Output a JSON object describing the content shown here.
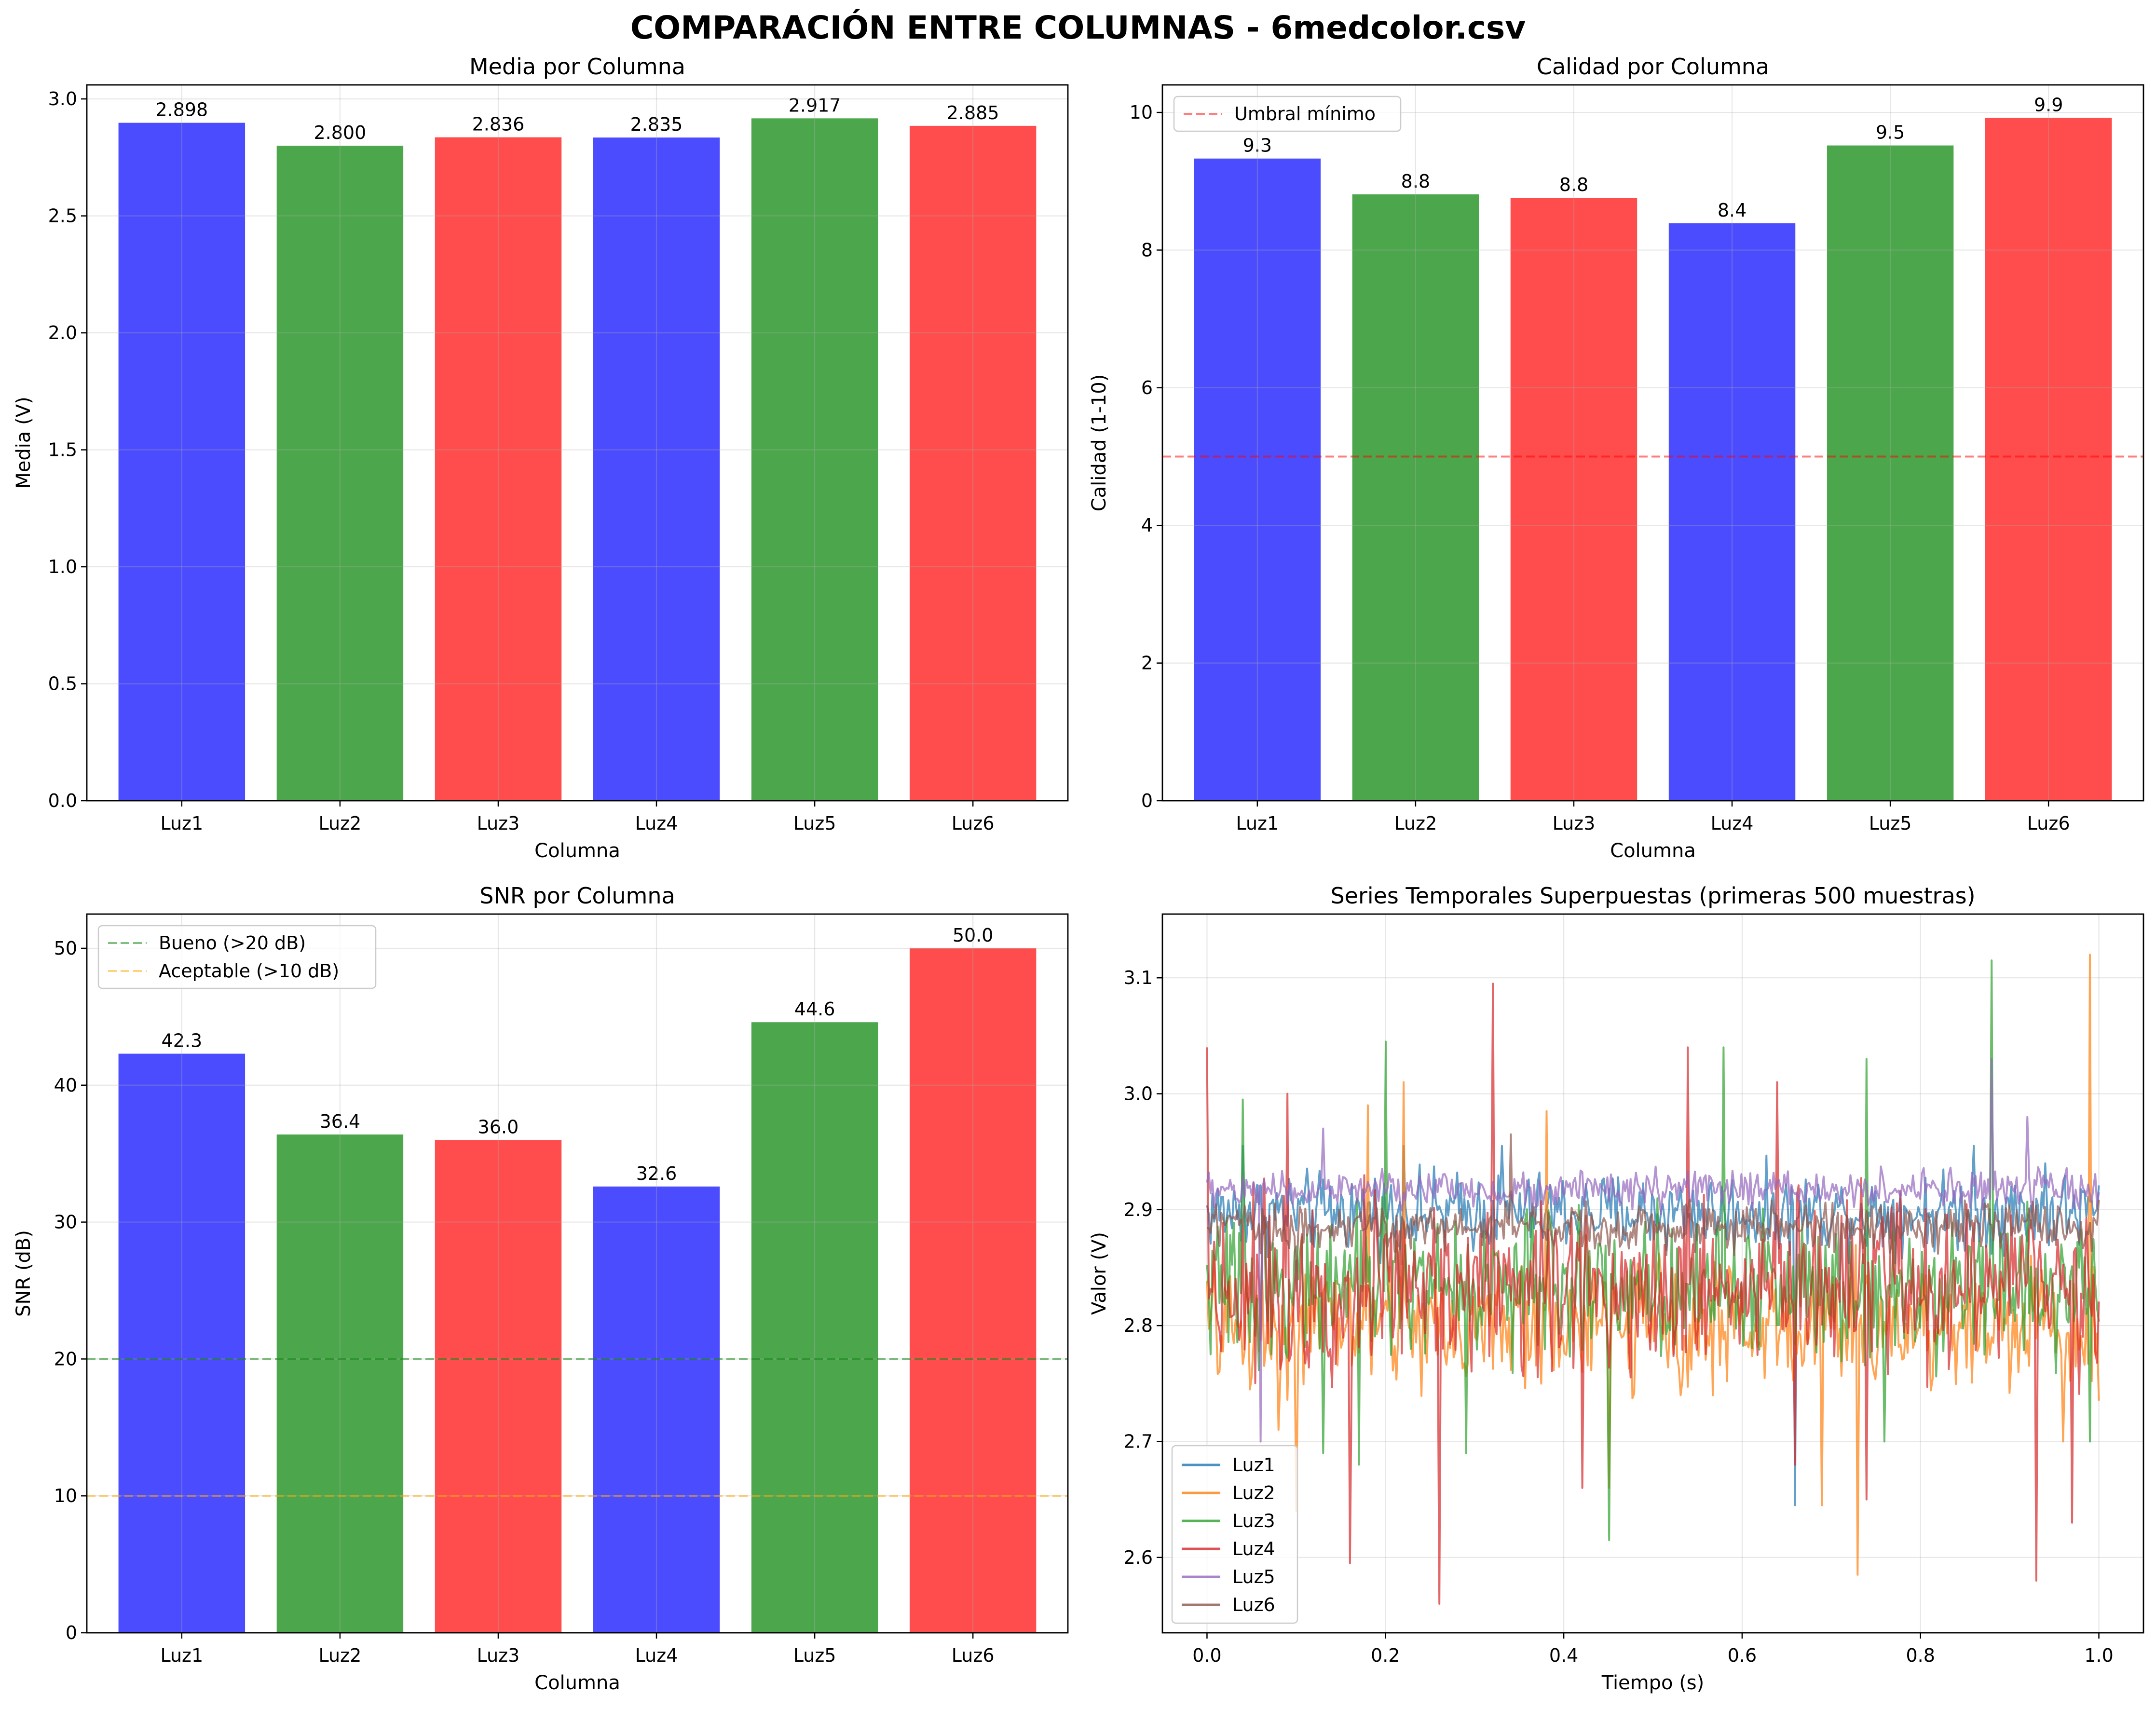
{
  "figure": {
    "title": "COMPARACIÓN ENTRE COLUMNAS - 6medcolor.csv"
  },
  "colors": {
    "blue": "#0000ff",
    "green": "#008000",
    "red": "#ff0000"
  },
  "chart_data": [
    {
      "type": "bar",
      "title": "Media por Columna",
      "xlabel": "Columna",
      "ylabel": "Media (V)",
      "categories": [
        "Luz1",
        "Luz2",
        "Luz3",
        "Luz4",
        "Luz5",
        "Luz6"
      ],
      "values": [
        2.898,
        2.8,
        2.836,
        2.835,
        2.917,
        2.885
      ],
      "value_labels": [
        "2.898",
        "2.800",
        "2.836",
        "2.835",
        "2.917",
        "2.885"
      ],
      "bar_colors": [
        "#0000ff",
        "#008000",
        "#ff0000",
        "#0000ff",
        "#008000",
        "#ff0000"
      ],
      "ylim": [
        0,
        3.06
      ],
      "yticks": [
        0,
        0.5,
        1.0,
        1.5,
        2.0,
        2.5,
        3.0
      ],
      "ytick_labels": [
        "0.0",
        "0.5",
        "1.0",
        "1.5",
        "2.0",
        "2.5",
        "3.0"
      ],
      "grid": true
    },
    {
      "type": "bar",
      "title": "Calidad por Columna",
      "xlabel": "Columna",
      "ylabel": "Calidad (1-10)",
      "categories": [
        "Luz1",
        "Luz2",
        "Luz3",
        "Luz4",
        "Luz5",
        "Luz6"
      ],
      "values": [
        9.33,
        8.81,
        8.76,
        8.39,
        9.52,
        9.92
      ],
      "value_labels": [
        "9.3",
        "8.8",
        "8.8",
        "8.4",
        "9.5",
        "9.9"
      ],
      "bar_colors": [
        "#0000ff",
        "#008000",
        "#ff0000",
        "#0000ff",
        "#008000",
        "#ff0000"
      ],
      "ylim": [
        0,
        10.4
      ],
      "yticks": [
        0,
        2,
        4,
        6,
        8,
        10
      ],
      "ytick_labels": [
        "0",
        "2",
        "4",
        "6",
        "8",
        "10"
      ],
      "hlines": [
        {
          "y": 5,
          "color": "#ff0000",
          "label": "Umbral mínimo"
        }
      ],
      "legend_position": "upper-left",
      "grid": true
    },
    {
      "type": "bar",
      "title": "SNR por Columna",
      "xlabel": "Columna",
      "ylabel": "SNR (dB)",
      "categories": [
        "Luz1",
        "Luz2",
        "Luz3",
        "Luz4",
        "Luz5",
        "Luz6"
      ],
      "values": [
        42.3,
        36.4,
        36.0,
        32.6,
        44.6,
        50.0
      ],
      "value_labels": [
        "42.3",
        "36.4",
        "36.0",
        "32.6",
        "44.6",
        "50.0"
      ],
      "bar_colors": [
        "#0000ff",
        "#008000",
        "#ff0000",
        "#0000ff",
        "#008000",
        "#ff0000"
      ],
      "ylim": [
        0,
        52.5
      ],
      "yticks": [
        0,
        10,
        20,
        30,
        40,
        50
      ],
      "ytick_labels": [
        "0",
        "10",
        "20",
        "30",
        "40",
        "50"
      ],
      "hlines": [
        {
          "y": 20,
          "color": "#008000",
          "label": "Bueno (>20 dB)"
        },
        {
          "y": 10,
          "color": "#ffa500",
          "label": "Aceptable (>10 dB)"
        }
      ],
      "legend_position": "upper-left",
      "grid": true
    },
    {
      "type": "line",
      "title": "Series Temporales Superpuestas (primeras 500 muestras)",
      "xlabel": "Tiempo (s)",
      "ylabel": "Valor (V)",
      "xlim": [
        -0.05,
        1.05
      ],
      "ylim": [
        2.535,
        3.155
      ],
      "xticks": [
        0.0,
        0.2,
        0.4,
        0.6,
        0.8,
        1.0
      ],
      "xtick_labels": [
        "0.0",
        "0.2",
        "0.4",
        "0.6",
        "0.8",
        "1.0"
      ],
      "yticks": [
        2.6,
        2.7,
        2.8,
        2.9,
        3.0,
        3.1
      ],
      "ytick_labels": [
        "2.6",
        "2.7",
        "2.8",
        "2.9",
        "3.0",
        "3.1"
      ],
      "legend_position": "lower-left",
      "grid": true,
      "series": [
        {
          "name": "Luz1",
          "color": "#1f77b4",
          "mean": 2.898,
          "spread": 0.025,
          "n": 500,
          "spikes": [
            [
              0.66,
              2.645
            ],
            [
              0.33,
              2.955
            ],
            [
              0.22,
              2.955
            ],
            [
              0.04,
              2.955
            ],
            [
              0.86,
              2.955
            ],
            [
              0.94,
              2.94
            ]
          ]
        },
        {
          "name": "Luz2",
          "color": "#ff7f0e",
          "mean": 2.8,
          "spread": 0.04,
          "n": 500,
          "spikes": [
            [
              0.99,
              3.12
            ],
            [
              0.18,
              2.99
            ],
            [
              0.22,
              3.01
            ],
            [
              0.38,
              2.985
            ],
            [
              0.73,
              2.585
            ],
            [
              0.45,
              2.66
            ],
            [
              0.1,
              2.64
            ],
            [
              0.69,
              2.645
            ],
            [
              0.08,
              2.71
            ],
            [
              0.96,
              2.7
            ]
          ]
        },
        {
          "name": "Luz3",
          "color": "#2ca02c",
          "mean": 2.835,
          "spread": 0.045,
          "n": 500,
          "spikes": [
            [
              0.88,
              3.115
            ],
            [
              0.2,
              3.045
            ],
            [
              0.58,
              3.04
            ],
            [
              0.45,
              2.615
            ],
            [
              0.04,
              2.995
            ],
            [
              0.13,
              2.69
            ],
            [
              0.17,
              2.68
            ],
            [
              0.29,
              2.69
            ],
            [
              0.74,
              3.03
            ],
            [
              0.76,
              2.7
            ],
            [
              0.99,
              2.7
            ]
          ]
        },
        {
          "name": "Luz4",
          "color": "#d62728",
          "mean": 2.835,
          "spread": 0.055,
          "n": 500,
          "spikes": [
            [
              0.32,
              3.095
            ],
            [
              0.0,
              3.04
            ],
            [
              0.54,
              3.04
            ],
            [
              0.26,
              2.56
            ],
            [
              0.16,
              2.595
            ],
            [
              0.93,
              2.58
            ],
            [
              0.66,
              2.68
            ],
            [
              0.09,
              3.0
            ],
            [
              0.64,
              3.01
            ],
            [
              0.42,
              2.66
            ],
            [
              0.74,
              2.65
            ],
            [
              0.97,
              2.63
            ]
          ]
        },
        {
          "name": "Luz5",
          "color": "#9467bd",
          "mean": 2.917,
          "spread": 0.012,
          "n": 500,
          "spikes": [
            [
              0.88,
              3.03
            ],
            [
              0.06,
              2.7
            ],
            [
              0.92,
              2.98
            ],
            [
              0.13,
              2.97
            ]
          ]
        },
        {
          "name": "Luz6",
          "color": "#8c564b",
          "mean": 2.885,
          "spread": 0.015,
          "n": 500,
          "spikes": [
            [
              0.34,
              2.965
            ],
            [
              0.71,
              2.84
            ],
            [
              0.1,
              2.83
            ]
          ]
        }
      ]
    }
  ]
}
